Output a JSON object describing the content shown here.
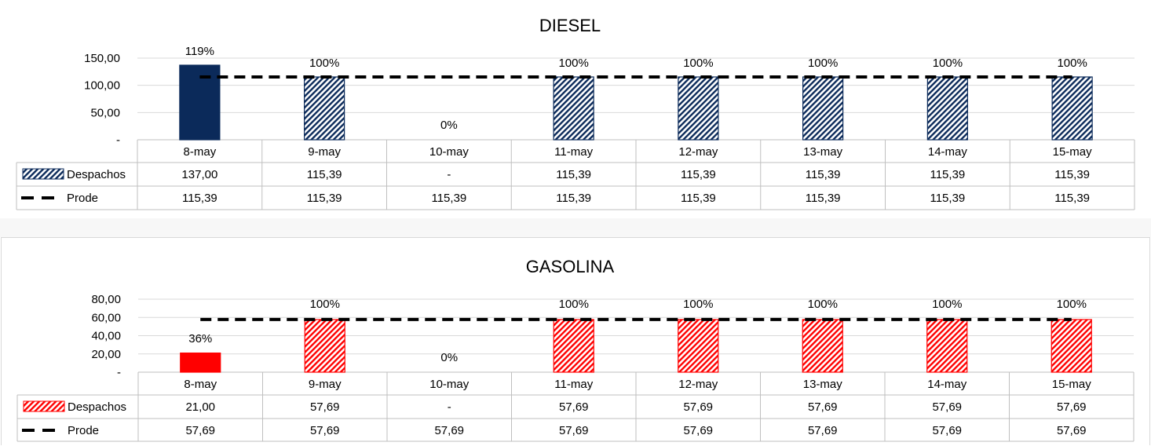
{
  "colors": {
    "diesel_primary": "#0b2a5a",
    "gasolina_primary": "#ff0000",
    "target_line": "#000000",
    "grid": "#d9d9d9"
  },
  "chart_data": [
    {
      "type": "bar",
      "title": "DIESEL",
      "categories": [
        "8-may",
        "9-may",
        "10-may",
        "11-may",
        "12-may",
        "13-may",
        "14-may",
        "15-may"
      ],
      "ylim": [
        0,
        150
      ],
      "yticks": [
        0,
        50,
        100,
        150
      ],
      "ytick_labels": [
        "-",
        "50,00",
        "100,00",
        "150,00"
      ],
      "grid": true,
      "color": "#0b2a5a",
      "series": [
        {
          "name": "Despachos",
          "kind": "bar",
          "values": [
            137,
            115.39,
            0,
            115.39,
            115.39,
            115.39,
            115.39,
            115.39
          ],
          "table_labels": [
            "137,00",
            "115,39",
            "-",
            "115,39",
            "115,39",
            "115,39",
            "115,39",
            "115,39"
          ]
        },
        {
          "name": "Prode",
          "kind": "line-dashed",
          "values": [
            115.39,
            115.39,
            115.39,
            115.39,
            115.39,
            115.39,
            115.39,
            115.39
          ],
          "table_labels": [
            "115,39",
            "115,39",
            "115,39",
            "115,39",
            "115,39",
            "115,39",
            "115,39",
            "115,39"
          ]
        }
      ],
      "data_labels": [
        "119%",
        "100%",
        "0%",
        "100%",
        "100%",
        "100%",
        "100%",
        "100%"
      ]
    },
    {
      "type": "bar",
      "title": "GASOLINA",
      "categories": [
        "8-may",
        "9-may",
        "10-may",
        "11-may",
        "12-may",
        "13-may",
        "14-may",
        "15-may"
      ],
      "ylim": [
        0,
        80
      ],
      "yticks": [
        0,
        20,
        40,
        60,
        80
      ],
      "ytick_labels": [
        "-",
        "20,00",
        "40,00",
        "60,00",
        "80,00"
      ],
      "grid": true,
      "color": "#ff0000",
      "series": [
        {
          "name": "Despachos",
          "kind": "bar",
          "values": [
            21,
            57.69,
            0,
            57.69,
            57.69,
            57.69,
            57.69,
            57.69
          ],
          "table_labels": [
            "21,00",
            "57,69",
            "-",
            "57,69",
            "57,69",
            "57,69",
            "57,69",
            "57,69"
          ]
        },
        {
          "name": "Prode",
          "kind": "line-dashed",
          "values": [
            57.69,
            57.69,
            57.69,
            57.69,
            57.69,
            57.69,
            57.69,
            57.69
          ],
          "table_labels": [
            "57,69",
            "57,69",
            "57,69",
            "57,69",
            "57,69",
            "57,69",
            "57,69",
            "57,69"
          ]
        }
      ],
      "data_labels": [
        "36%",
        "100%",
        "0%",
        "100%",
        "100%",
        "100%",
        "100%",
        "100%"
      ]
    }
  ]
}
